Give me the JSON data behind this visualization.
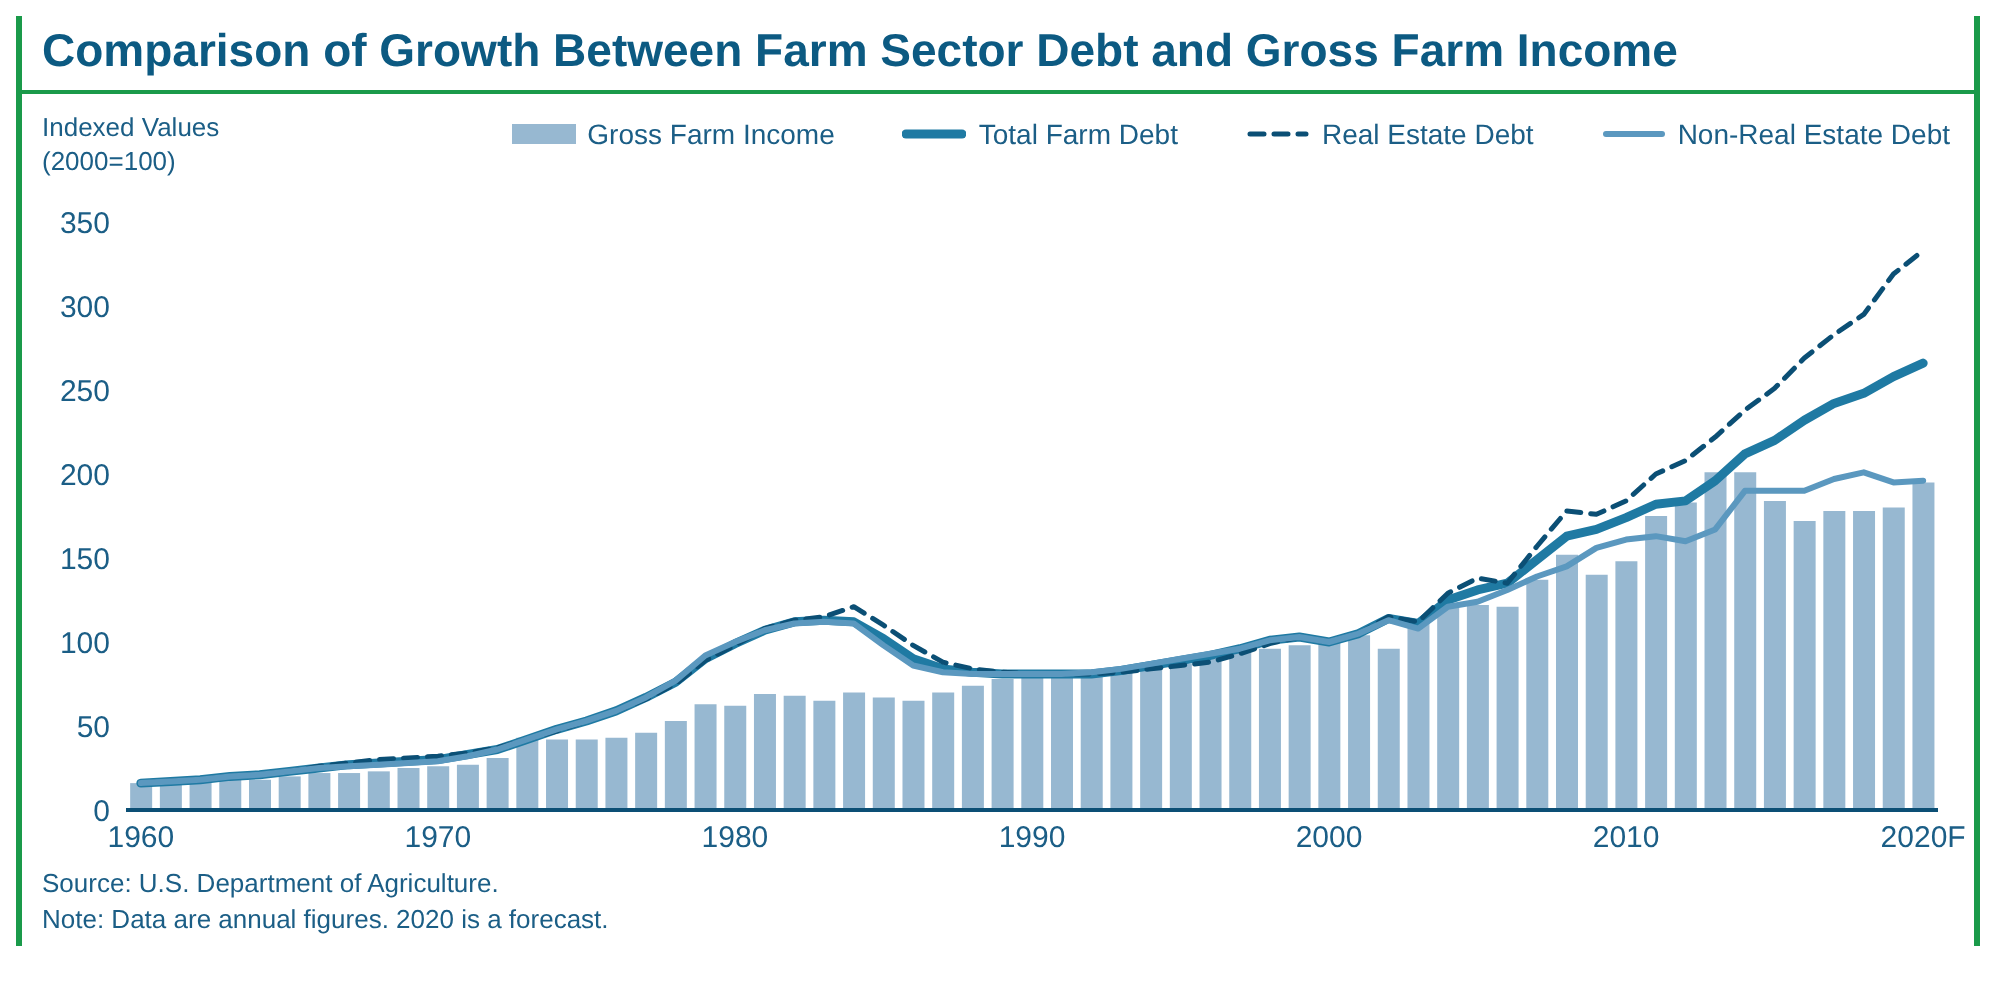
{
  "chart_data": {
    "type": "bar",
    "title": "Comparison of Growth Between Farm Sector Debt and Gross Farm Income",
    "ylabel": "Indexed Values (2000=100)",
    "categories": [
      "1960",
      null,
      null,
      null,
      null,
      null,
      null,
      null,
      null,
      null,
      "1970",
      null,
      null,
      null,
      null,
      null,
      null,
      null,
      null,
      null,
      "1980",
      null,
      null,
      null,
      null,
      null,
      null,
      null,
      null,
      null,
      "1990",
      null,
      null,
      null,
      null,
      null,
      null,
      null,
      null,
      null,
      "2000",
      null,
      null,
      null,
      null,
      null,
      null,
      null,
      null,
      null,
      "2010",
      null,
      null,
      null,
      null,
      null,
      null,
      null,
      null,
      null,
      "2020F"
    ],
    "series": [
      {
        "name": "Gross Farm Income",
        "color": "#97b8d1",
        "values": [
          16,
          16,
          17,
          18,
          18,
          20,
          22,
          22,
          23,
          25,
          26,
          27,
          31,
          43,
          42,
          42,
          43,
          46,
          53,
          63,
          62,
          69,
          68,
          65,
          70,
          67,
          65,
          70,
          74,
          78,
          79,
          80,
          80,
          82,
          84,
          87,
          90,
          94,
          96,
          98,
          100,
          104,
          96,
          112,
          121,
          122,
          121,
          137,
          152,
          140,
          148,
          175,
          183,
          201,
          201,
          184,
          172,
          178,
          178,
          180,
          195
        ]
      },
      {
        "name": "Total Farm Debt",
        "type": "line",
        "line_style": "solid",
        "color": "#1f7aa3",
        "values": [
          16,
          17,
          18,
          20,
          21,
          23,
          25,
          27,
          28,
          29,
          30,
          33,
          36,
          42,
          48,
          53,
          59,
          67,
          76,
          90,
          99,
          107,
          112,
          113,
          112,
          102,
          90,
          84,
          82,
          81,
          81,
          81,
          81,
          83,
          86,
          89,
          92,
          96,
          101,
          103,
          100,
          105,
          114,
          111,
          125,
          131,
          135,
          149,
          163,
          167,
          174,
          182,
          184,
          196,
          212,
          220,
          232,
          242,
          248,
          258,
          266
        ]
      },
      {
        "name": "Real Estate Debt",
        "type": "line",
        "line_style": "dashed",
        "color": "#0b4f75",
        "values": [
          16,
          17,
          18,
          20,
          21,
          23,
          26,
          28,
          30,
          31,
          32,
          34,
          37,
          42,
          47,
          53,
          59,
          66,
          75,
          89,
          98,
          108,
          113,
          115,
          121,
          110,
          98,
          88,
          84,
          82,
          81,
          81,
          81,
          82,
          84,
          86,
          88,
          93,
          99,
          103,
          100,
          105,
          115,
          112,
          129,
          138,
          135,
          157,
          178,
          176,
          184,
          200,
          208,
          222,
          238,
          251,
          269,
          283,
          295,
          319,
          333
        ]
      },
      {
        "name": "Non-Real Estate Debt",
        "type": "line",
        "line_style": "solid",
        "color": "#5b98bf",
        "values": [
          16,
          17,
          18,
          20,
          21,
          23,
          25,
          26,
          27,
          28,
          29,
          32,
          36,
          42,
          48,
          53,
          59,
          67,
          77,
          92,
          100,
          107,
          111,
          112,
          111,
          98,
          86,
          82,
          81,
          81,
          81,
          81,
          82,
          84,
          87,
          90,
          93,
          96,
          101,
          103,
          100,
          105,
          113,
          108,
          121,
          124,
          131,
          139,
          145,
          156,
          161,
          163,
          160,
          167,
          190,
          190,
          190,
          197,
          201,
          195,
          196
        ]
      }
    ],
    "ylim": [
      0,
      350
    ],
    "yticks": [
      0,
      50,
      100,
      150,
      200,
      250,
      300,
      350
    ],
    "grid": false,
    "legend": "top right",
    "marker": "none",
    "annotations": [
      "Source: U.S. Department of Agriculture.",
      "Note: Data are annual figures. 2020 is a forecast."
    ]
  }
}
